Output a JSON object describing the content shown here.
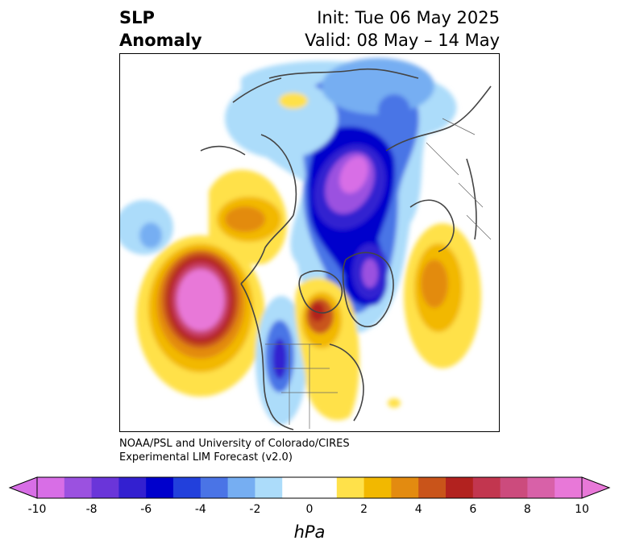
{
  "title": {
    "line1": "SLP",
    "line2": "Anomaly"
  },
  "header": {
    "init": "Init: Tue 06 May 2025",
    "valid": "Valid: 08 May – 14 May"
  },
  "credit": {
    "line1": "NOAA/PSL and University of Colorado/CIRES",
    "line2": "Experimental LIM Forecast (v2.0)"
  },
  "colorbar": {
    "unit": "hPa",
    "ticks": [
      "-10",
      "-8",
      "-6",
      "-4",
      "-2",
      "0",
      "2",
      "4",
      "6",
      "8",
      "10"
    ],
    "colors": [
      "#d86ee6",
      "#9b51e0",
      "#6a35d9",
      "#3320d0",
      "#0000cc",
      "#2240dc",
      "#4a74e6",
      "#76aef2",
      "#acdcfa",
      "#ffffff",
      "#ffffff",
      "#ffe14a",
      "#f2b800",
      "#e38b10",
      "#c9541a",
      "#b2221f",
      "#c2364f",
      "#cc4b7d",
      "#d861a8",
      "#e878d8"
    ]
  },
  "map": {
    "projection": "north-polar-stereographic",
    "land_outline": "#444444",
    "anomaly_centers": [
      {
        "name": "Gulf of Alaska high",
        "sign": "positive",
        "peak": 10,
        "color": "#e878d8"
      },
      {
        "name": "Arctic low",
        "sign": "negative",
        "peak": -10,
        "color": "#d86ee6"
      },
      {
        "name": "Greenland low",
        "sign": "negative",
        "peak": -8,
        "color": "#9b51e0"
      },
      {
        "name": "Eastern Siberia high",
        "sign": "positive",
        "peak": 4,
        "color": "#e38b10"
      },
      {
        "name": "Hudson Bay high",
        "sign": "positive",
        "peak": 6,
        "color": "#b2221f"
      },
      {
        "name": "North Atlantic high",
        "sign": "positive",
        "peak": 4,
        "color": "#e38b10"
      },
      {
        "name": "US Rockies low",
        "sign": "negative",
        "peak": -6,
        "color": "#3320d0"
      },
      {
        "name": "North Pacific low",
        "sign": "negative",
        "peak": -2,
        "color": "#76aef2"
      }
    ]
  }
}
